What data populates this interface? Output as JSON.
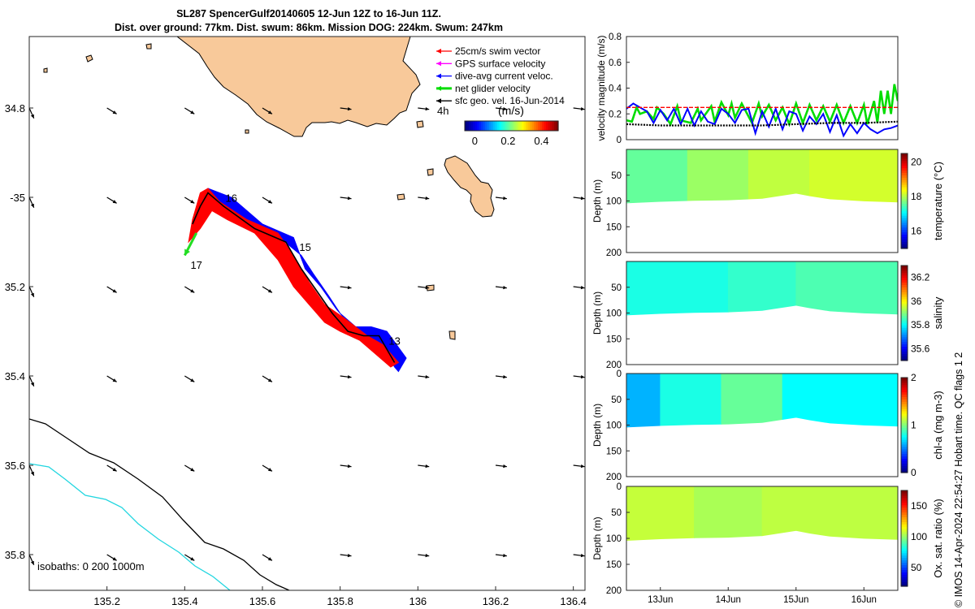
{
  "title_line1": "SL287 SpencerGulf20140605 12-Jun 12Z to 16-Jun 11Z.",
  "title_line2": "Dist. over ground: 77km. Dist. swum: 86km. Mission DOG: 224km. Swum: 247km",
  "footer": "© IMOS 14-Apr-2024 22:54:27 Hobart time. QC flags 1  2",
  "chart_data": [
    {
      "type": "map",
      "name": "glider track map",
      "xlim": [
        135.0,
        136.43
      ],
      "ylim": [
        -35.88,
        -34.64
      ],
      "x_ticks": [
        135.2,
        135.4,
        135.6,
        135.8,
        136.0,
        136.2,
        136.4
      ],
      "x_tick_labels": [
        "135.2",
        "135.4",
        "135.6",
        "135.8",
        "136",
        "136.2",
        "136.4"
      ],
      "y_ticks": [
        -34.8,
        -35.0,
        -35.2,
        -35.4,
        -35.6,
        -35.8
      ],
      "y_tick_labels": [
        "34.8",
        "-35",
        "35.2",
        "35.4",
        "35.6",
        "35.8"
      ],
      "legend": [
        {
          "label": "25cm/s swim vector",
          "color": "#ff0000"
        },
        {
          "label": "GPS surface velocity",
          "color": "#ff00ff"
        },
        {
          "label": "dive-avg current veloc.",
          "color": "#0000ff"
        },
        {
          "label": "net glider velocity",
          "color": "#00dd00"
        },
        {
          "label": "sfc geo. vel. 16-Jun-2014",
          "color": "#000000"
        }
      ],
      "interval_label": "4h",
      "colorbar_label": "(m/s)",
      "colorbar_ticks": [
        0,
        0.2,
        0.4
      ],
      "colorbar_tick_labels": [
        "0",
        "0.2",
        "0.4"
      ],
      "colorbar_range": [
        -0.06,
        0.5
      ],
      "day_labels": [
        {
          "text": "16",
          "lon": 135.52,
          "lat": -35.01
        },
        {
          "text": "15",
          "lon": 135.71,
          "lat": -35.12
        },
        {
          "text": "17",
          "lon": 135.43,
          "lat": -35.16
        },
        {
          "text": "13",
          "lon": 135.94,
          "lat": -35.33
        }
      ],
      "isobaths_label": "isobaths: 0   200  1000m",
      "land_color": "#f8c99a",
      "track": [
        [
          135.94,
          -35.37
        ],
        [
          135.9,
          -35.31
        ],
        [
          135.86,
          -35.31
        ],
        [
          135.82,
          -35.3
        ],
        [
          135.78,
          -35.26
        ],
        [
          135.74,
          -35.21
        ],
        [
          135.7,
          -35.16
        ],
        [
          135.66,
          -35.1
        ],
        [
          135.58,
          -35.07
        ],
        [
          135.5,
          -35.02
        ],
        [
          135.46,
          -34.99
        ],
        [
          135.44,
          -35.02
        ],
        [
          135.42,
          -35.06
        ]
      ],
      "current_shade": [
        [
          135.94,
          -35.38
        ],
        [
          135.91,
          -35.33
        ],
        [
          135.87,
          -35.31
        ],
        [
          135.83,
          -35.29
        ],
        [
          135.79,
          -35.25
        ],
        [
          135.75,
          -35.2
        ],
        [
          135.71,
          -35.16
        ],
        [
          135.68,
          -35.09
        ],
        [
          135.6,
          -35.06
        ],
        [
          135.52,
          -35.0
        ],
        [
          135.46,
          -34.98
        ],
        [
          135.45,
          -35.0
        ],
        [
          135.43,
          -35.08
        ],
        [
          135.42,
          -35.06
        ],
        [
          135.44,
          -35.01
        ],
        [
          135.47,
          -35.0
        ],
        [
          135.55,
          -35.05
        ],
        [
          135.63,
          -35.08
        ],
        [
          135.7,
          -35.13
        ],
        [
          135.73,
          -35.17
        ],
        [
          135.77,
          -35.22
        ],
        [
          135.8,
          -35.26
        ],
        [
          135.84,
          -35.29
        ],
        [
          135.88,
          -35.29
        ],
        [
          135.92,
          -35.3
        ],
        [
          135.97,
          -35.36
        ],
        [
          135.95,
          -35.39
        ]
      ],
      "swim_shade": [
        [
          135.93,
          -35.38
        ],
        [
          135.89,
          -35.35
        ],
        [
          135.85,
          -35.32
        ],
        [
          135.8,
          -35.3
        ],
        [
          135.76,
          -35.28
        ],
        [
          135.72,
          -35.24
        ],
        [
          135.68,
          -35.2
        ],
        [
          135.64,
          -35.14
        ],
        [
          135.58,
          -35.08
        ],
        [
          135.51,
          -35.05
        ],
        [
          135.47,
          -35.03
        ],
        [
          135.44,
          -35.07
        ],
        [
          135.41,
          -35.1
        ],
        [
          135.42,
          -35.05
        ],
        [
          135.44,
          -34.99
        ],
        [
          135.46,
          -34.98
        ],
        [
          135.49,
          -35.01
        ],
        [
          135.56,
          -35.05
        ],
        [
          135.64,
          -35.08
        ],
        [
          135.68,
          -35.13
        ],
        [
          135.72,
          -35.19
        ],
        [
          135.76,
          -35.24
        ],
        [
          135.81,
          -35.27
        ],
        [
          135.87,
          -35.31
        ],
        [
          135.91,
          -35.33
        ],
        [
          135.95,
          -35.37
        ]
      ],
      "net_velocity": {
        "from": [
          135.43,
          -35.08
        ],
        "to": [
          135.4,
          -35.13
        ]
      },
      "geo_velocity_grid": {
        "lons": [
          135.0,
          135.2,
          135.4,
          135.6,
          135.8,
          136.0,
          136.2,
          136.4
        ],
        "lats": [
          -34.8,
          -35.0,
          -35.2,
          -35.4,
          -35.6,
          -35.8
        ]
      }
    },
    {
      "type": "line",
      "name": "velocity magnitude",
      "ylabel": "velocity magnitude (m/s)",
      "ylim": [
        0,
        0.8
      ],
      "y_ticks": [
        0,
        0.2,
        0.4,
        0.6,
        0.8
      ],
      "y_tick_labels": [
        "0",
        "0.2",
        "0.4",
        "0.6",
        "0.8"
      ],
      "xlim": [
        12.5,
        16.5
      ],
      "series": [
        {
          "name": "net glider velocity",
          "color": "#00dd00",
          "x": [
            12.5,
            12.58,
            12.65,
            12.7,
            12.8,
            12.9,
            12.95,
            13.05,
            13.15,
            13.25,
            13.3,
            13.45,
            13.55,
            13.6,
            13.75,
            13.8,
            13.9,
            14.0,
            14.05,
            14.1,
            14.2,
            14.35,
            14.45,
            14.5,
            14.6,
            14.7,
            14.8,
            14.9,
            15.0,
            15.1,
            15.2,
            15.3,
            15.4,
            15.5,
            15.6,
            15.7,
            15.8,
            15.9,
            16.0,
            16.05,
            16.15,
            16.2,
            16.25,
            16.3,
            16.35,
            16.4,
            16.45,
            16.5
          ],
          "y": [
            0.15,
            0.14,
            0.25,
            0.2,
            0.22,
            0.16,
            0.25,
            0.2,
            0.12,
            0.26,
            0.15,
            0.13,
            0.24,
            0.15,
            0.26,
            0.14,
            0.29,
            0.19,
            0.28,
            0.17,
            0.28,
            0.13,
            0.28,
            0.18,
            0.27,
            0.15,
            0.25,
            0.12,
            0.28,
            0.13,
            0.27,
            0.15,
            0.26,
            0.14,
            0.27,
            0.13,
            0.26,
            0.13,
            0.27,
            0.12,
            0.3,
            0.13,
            0.38,
            0.2,
            0.38,
            0.2,
            0.43,
            0.3
          ]
        },
        {
          "name": "dive-avg current veloc.",
          "color": "#0000ff",
          "x": [
            12.5,
            12.6,
            12.8,
            12.9,
            13.0,
            13.1,
            13.2,
            13.3,
            13.4,
            13.5,
            13.6,
            13.7,
            13.8,
            13.9,
            14.0,
            14.1,
            14.2,
            14.3,
            14.4,
            14.5,
            14.6,
            14.7,
            14.8,
            14.9,
            15.0,
            15.1,
            15.2,
            15.3,
            15.4,
            15.5,
            15.6,
            15.7,
            15.8,
            15.9,
            16.0,
            16.1,
            16.2,
            16.3,
            16.4,
            16.5
          ],
          "y": [
            0.24,
            0.28,
            0.22,
            0.13,
            0.23,
            0.15,
            0.24,
            0.12,
            0.24,
            0.11,
            0.22,
            0.14,
            0.12,
            0.24,
            0.2,
            0.13,
            0.23,
            0.24,
            0.05,
            0.22,
            0.1,
            0.24,
            0.08,
            0.22,
            0.2,
            0.07,
            0.18,
            0.12,
            0.2,
            0.06,
            0.19,
            0.03,
            0.12,
            0.05,
            0.13,
            0.08,
            0.05,
            0.08,
            0.09,
            0.11
          ]
        },
        {
          "name": "25cm/s swim vector",
          "color": "#ff0000",
          "style": "dashed",
          "x": [
            12.5,
            16.5
          ],
          "y": [
            0.25,
            0.25
          ]
        },
        {
          "name": "sfc geo. vel.",
          "color": "#000000",
          "style": "dotted",
          "x": [
            12.5,
            13.0,
            13.5,
            14.0,
            14.5,
            15.0,
            15.5,
            16.0,
            16.5
          ],
          "y": [
            0.12,
            0.11,
            0.11,
            0.11,
            0.11,
            0.12,
            0.13,
            0.13,
            0.14
          ]
        }
      ]
    },
    {
      "type": "heatmap",
      "name": "temperature section",
      "ylabel": "Depth (m)",
      "y_ticks": [
        50,
        100,
        150,
        200
      ],
      "y_tick_labels": [
        "50",
        "100",
        "150",
        "200"
      ],
      "ylim": [
        0,
        200
      ],
      "colorbar_label": "temperature (°C)",
      "colorbar_ticks": [
        16,
        18,
        20
      ],
      "colorbar_tick_labels": [
        "16",
        "18",
        "20"
      ],
      "colorbar_range": [
        15.0,
        20.5
      ],
      "bottom_depth_profile": {
        "x": [
          12.5,
          13.0,
          13.5,
          14.0,
          14.5,
          15.0,
          15.2,
          15.5,
          16.0,
          16.5
        ],
        "depth": [
          104,
          101,
          99,
          98,
          95,
          85,
          90,
          96,
          100,
          102
        ]
      },
      "bands": [
        {
          "x": [
            12.5,
            13.4
          ],
          "value": 17.6
        },
        {
          "x": [
            13.4,
            14.3
          ],
          "value": 17.9
        },
        {
          "x": [
            14.3,
            15.2
          ],
          "value": 18.1
        },
        {
          "x": [
            15.2,
            16.5
          ],
          "value": 18.2
        }
      ]
    },
    {
      "type": "heatmap",
      "name": "salinity section",
      "ylabel": "Depth (m)",
      "y_ticks": [
        50,
        100,
        150,
        200
      ],
      "y_tick_labels": [
        "50",
        "100",
        "150",
        "200"
      ],
      "ylim": [
        0,
        200
      ],
      "colorbar_label": "salinity",
      "colorbar_ticks": [
        35.6,
        35.8,
        36,
        36.2
      ],
      "colorbar_tick_labels": [
        "35.6",
        "35.8",
        "36",
        "36.2"
      ],
      "colorbar_range": [
        35.5,
        36.3
      ],
      "bottom_depth_profile": {
        "x": [
          12.5,
          13.0,
          13.5,
          14.0,
          14.5,
          15.0,
          15.2,
          15.5,
          16.0,
          16.5
        ],
        "depth": [
          104,
          101,
          99,
          98,
          95,
          85,
          90,
          96,
          100,
          102
        ]
      },
      "bands": [
        {
          "x": [
            12.5,
            14.0
          ],
          "value": 35.82
        },
        {
          "x": [
            14.0,
            15.0
          ],
          "value": 35.84
        },
        {
          "x": [
            15.0,
            16.5
          ],
          "value": 35.86
        }
      ]
    },
    {
      "type": "heatmap",
      "name": "chlorophyll section",
      "ylabel": "Depth (m)",
      "y_ticks": [
        0,
        50,
        100,
        150,
        200
      ],
      "y_tick_labels": [
        "0",
        "50",
        "100",
        "150",
        "200"
      ],
      "ylim": [
        0,
        200
      ],
      "colorbar_label": "chl-a (mg m-3)",
      "colorbar_ticks": [
        0,
        1,
        2
      ],
      "colorbar_tick_labels": [
        "0",
        "1",
        "2"
      ],
      "colorbar_range": [
        0,
        2
      ],
      "bottom_depth_profile": {
        "x": [
          12.5,
          13.0,
          13.5,
          14.0,
          14.5,
          15.0,
          15.2,
          15.5,
          16.0,
          16.5
        ],
        "depth": [
          104,
          101,
          99,
          98,
          95,
          85,
          90,
          96,
          100,
          102
        ]
      },
      "bands": [
        {
          "x": [
            12.5,
            13.0
          ],
          "value": 0.6
        },
        {
          "x": [
            13.0,
            13.9
          ],
          "value": 0.8
        },
        {
          "x": [
            13.9,
            14.8
          ],
          "value": 0.95
        },
        {
          "x": [
            14.8,
            16.5
          ],
          "value": 0.75
        }
      ]
    },
    {
      "type": "heatmap",
      "name": "oxygen saturation section",
      "ylabel": "Depth (m)",
      "y_ticks": [
        0,
        50,
        100,
        150,
        200
      ],
      "y_tick_labels": [
        "0",
        "50",
        "100",
        "150",
        "200"
      ],
      "ylim": [
        0,
        200
      ],
      "colorbar_label": "Ox. sat. ratio (%)",
      "colorbar_ticks": [
        50,
        100,
        150
      ],
      "colorbar_tick_labels": [
        "50",
        "100",
        "150"
      ],
      "colorbar_range": [
        20,
        175
      ],
      "x_ticks": [
        13,
        14,
        15,
        16
      ],
      "x_tick_labels": [
        "13Jun",
        "14Jun",
        "15Jun",
        "16Jun"
      ],
      "bottom_depth_profile": {
        "x": [
          12.5,
          13.0,
          13.5,
          14.0,
          14.5,
          15.0,
          15.2,
          15.5,
          16.0,
          16.5
        ],
        "depth": [
          104,
          101,
          99,
          98,
          95,
          85,
          90,
          96,
          100,
          102
        ]
      },
      "bands": [
        {
          "x": [
            12.5,
            13.5
          ],
          "value": 108
        },
        {
          "x": [
            13.5,
            14.5
          ],
          "value": 104
        },
        {
          "x": [
            14.5,
            16.5
          ],
          "value": 107
        }
      ]
    }
  ]
}
